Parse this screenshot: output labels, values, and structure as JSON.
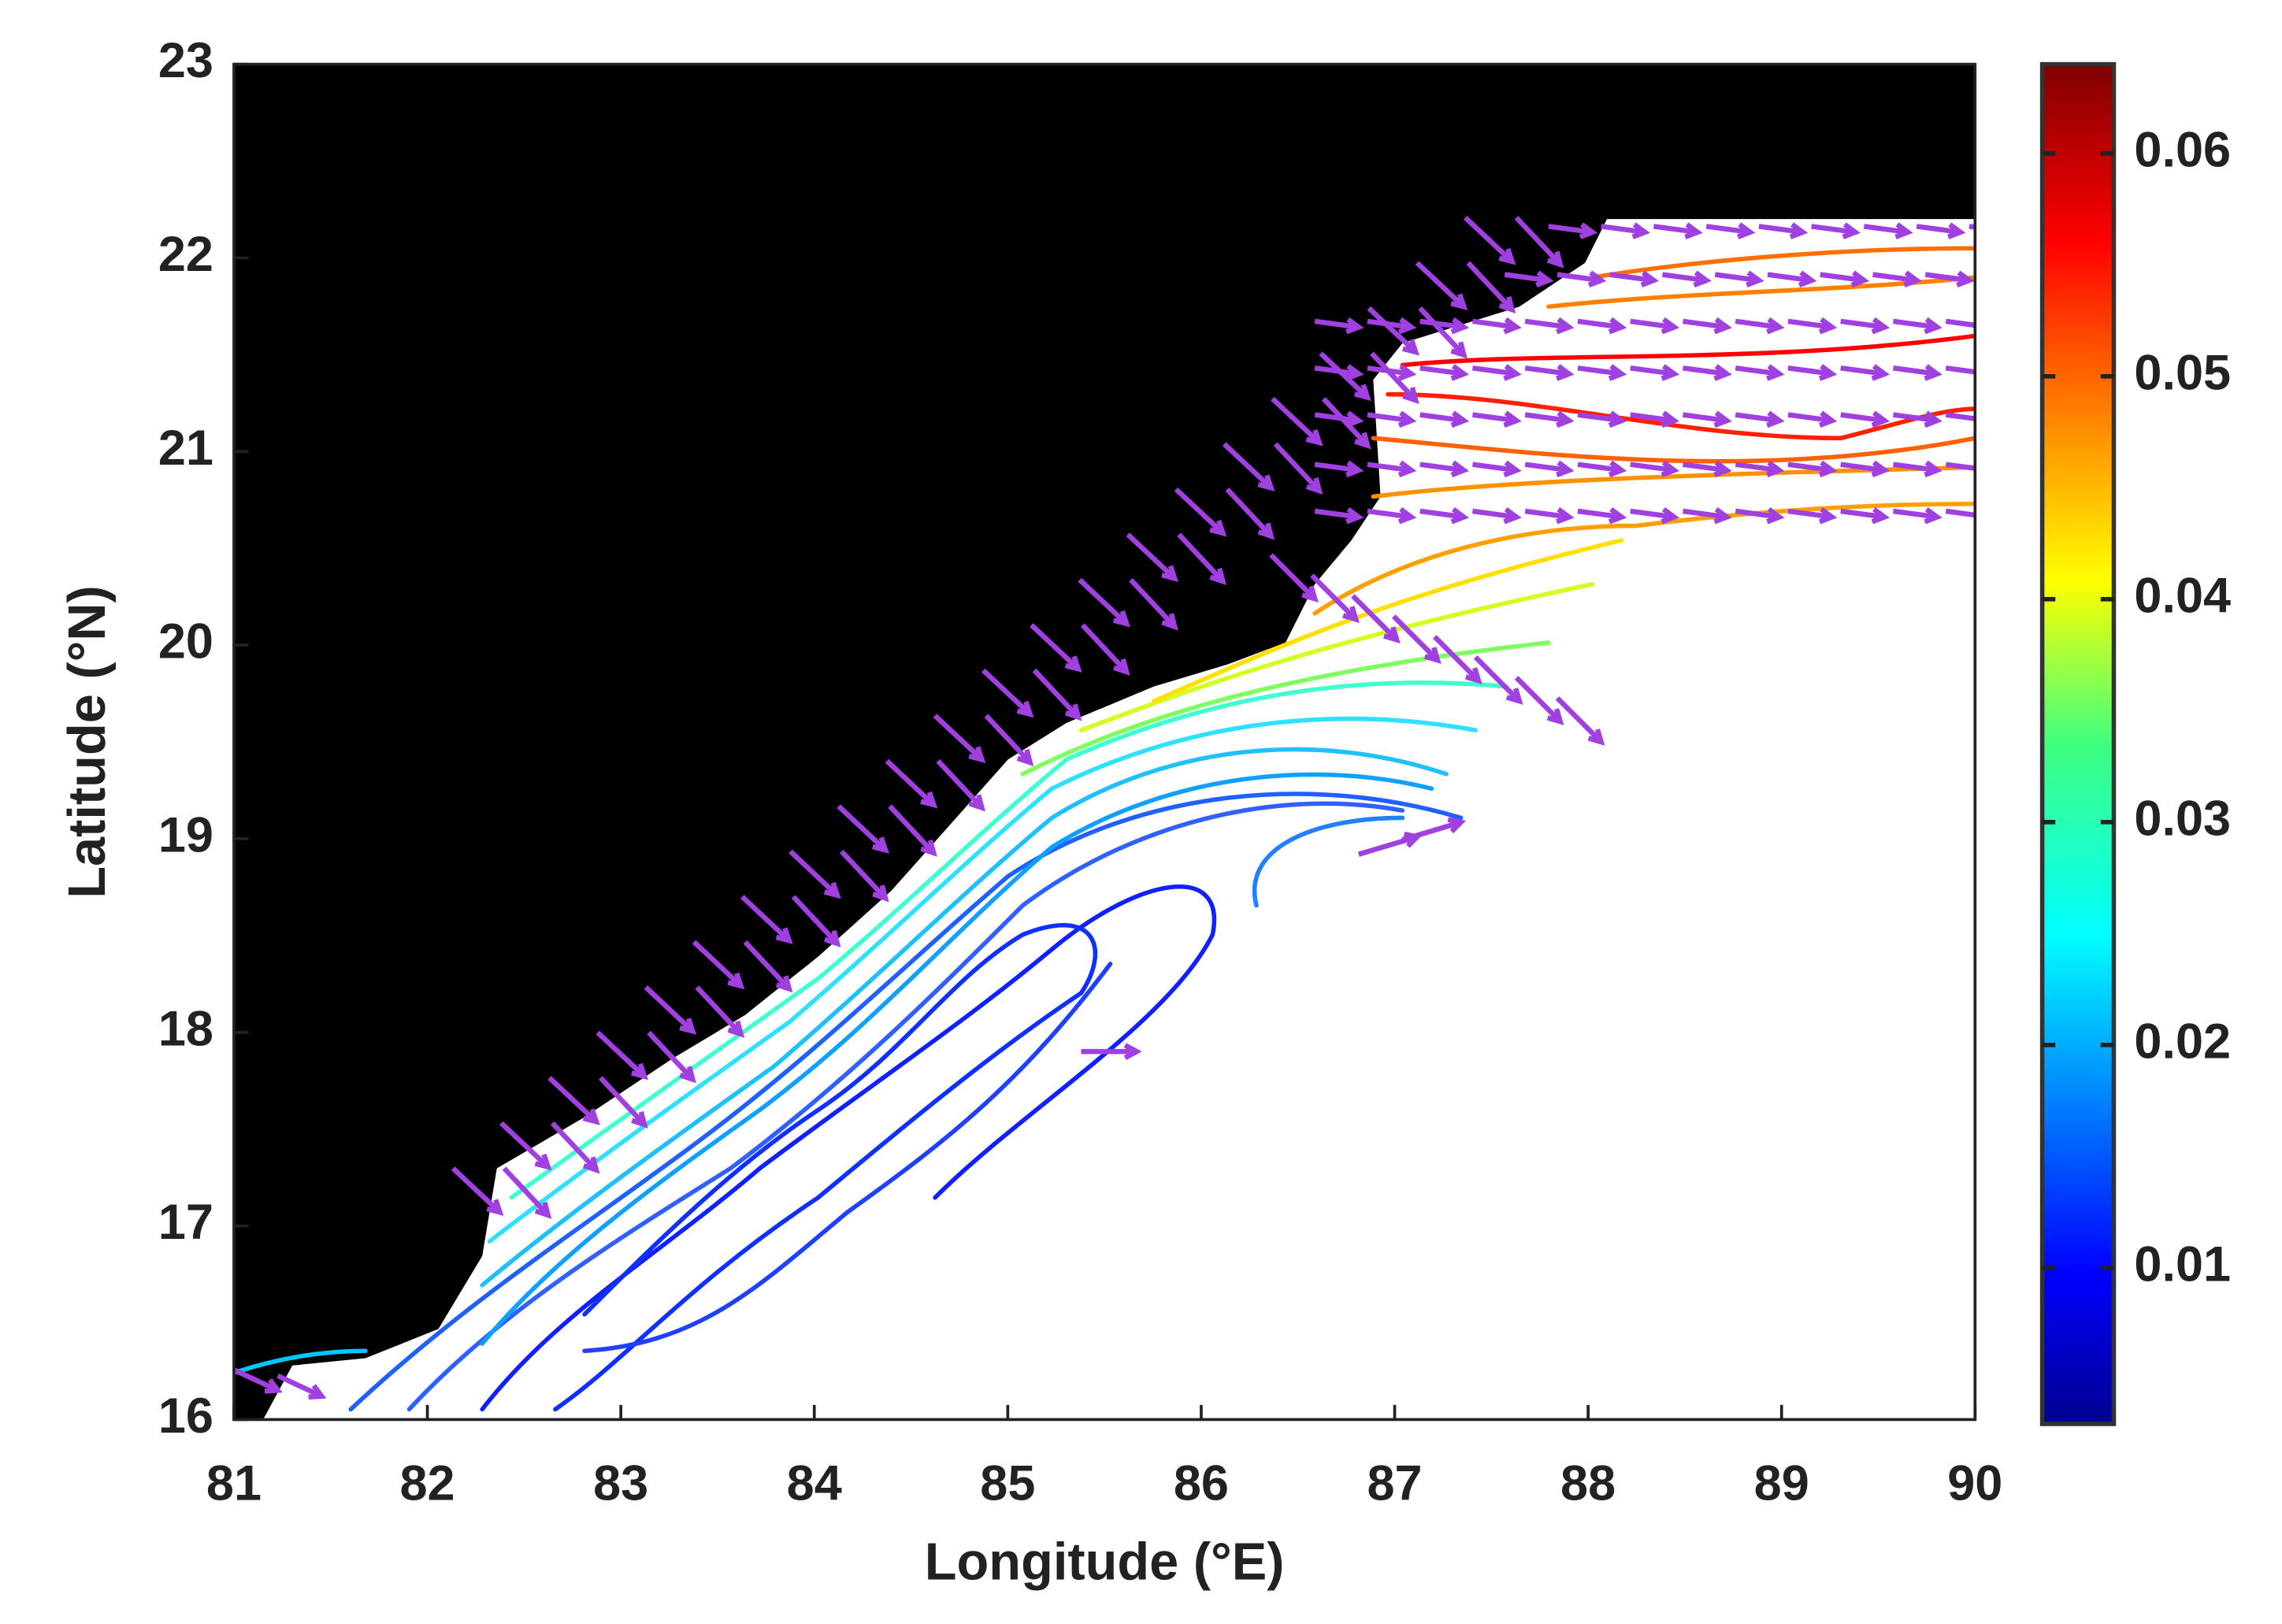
{
  "chart_data": {
    "type": "contour",
    "xlabel": "Longitude (°E)",
    "ylabel": "Latitude (°N)",
    "xlim": [
      81,
      90
    ],
    "ylim": [
      16,
      23
    ],
    "xticks": [
      81,
      82,
      83,
      84,
      85,
      86,
      87,
      88,
      89,
      90
    ],
    "yticks": [
      16,
      17,
      18,
      19,
      20,
      21,
      22,
      23
    ],
    "colorbar": {
      "colormap": "jet",
      "clim": [
        0.003,
        0.064
      ],
      "ticks": [
        0.01,
        0.02,
        0.03,
        0.04,
        0.05,
        0.06
      ]
    },
    "land_color": "#000000",
    "vector_color": "#a040e0"
  }
}
